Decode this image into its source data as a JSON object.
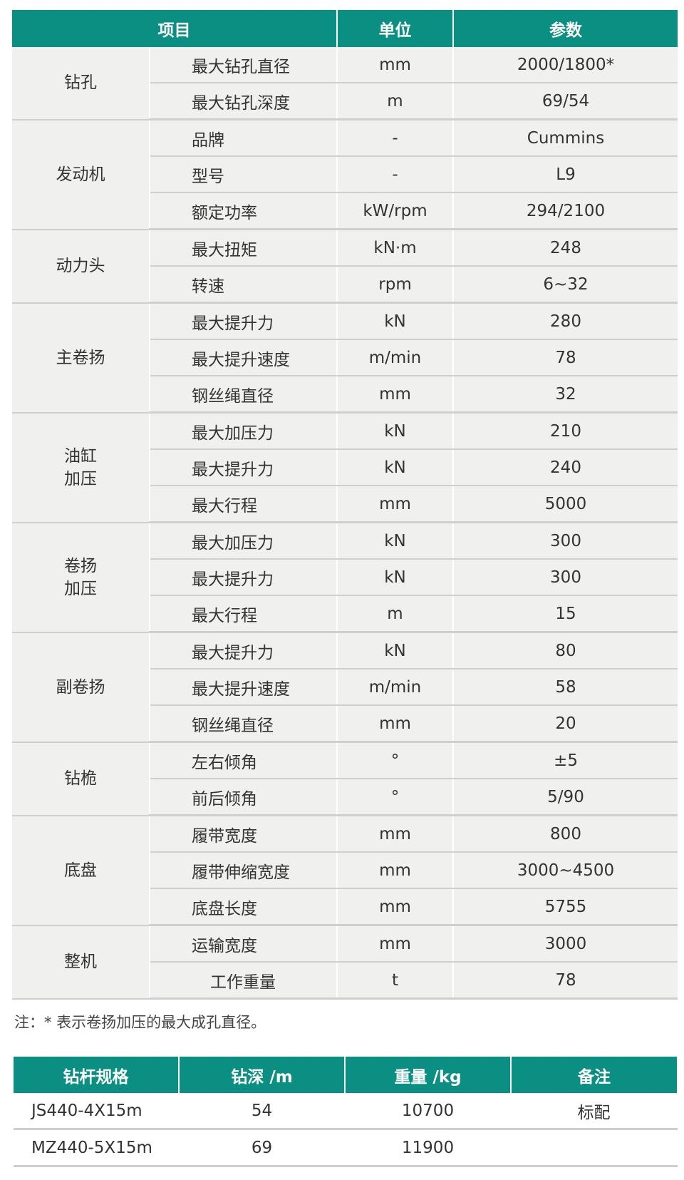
{
  "spec_table": {
    "headers": [
      "项目",
      "单位",
      "参数"
    ],
    "groups": [
      {
        "name": "钻孔",
        "rows": [
          [
            "最大钻孔直径",
            "mm",
            "2000/1800*"
          ],
          [
            "最大钻孔深度",
            "m",
            "69/54"
          ]
        ]
      },
      {
        "name": "发动机",
        "rows": [
          [
            "品牌",
            "-",
            "Cummins"
          ],
          [
            "型号",
            "-",
            "L9"
          ],
          [
            "额定功率",
            "kW/rpm",
            "294/2100"
          ]
        ]
      },
      {
        "name": "动力头",
        "rows": [
          [
            "最大扭矩",
            "kN·m",
            "248"
          ],
          [
            "转速",
            "rpm",
            "6~32"
          ]
        ]
      },
      {
        "name": "主卷扬",
        "rows": [
          [
            "最大提升力",
            "kN",
            "280"
          ],
          [
            "最大提升速度",
            "m/min",
            "78"
          ],
          [
            "钢丝绳直径",
            "mm",
            "32"
          ]
        ]
      },
      {
        "name": "油缸\n加压",
        "rows": [
          [
            "最大加压力",
            "kN",
            "210"
          ],
          [
            "最大提升力",
            "kN",
            "240"
          ],
          [
            "最大行程",
            "mm",
            "5000"
          ]
        ]
      },
      {
        "name": "卷扬\n加压",
        "rows": [
          [
            "最大加压力",
            "kN",
            "300"
          ],
          [
            "最大提升力",
            "kN",
            "300"
          ],
          [
            "最大行程",
            "m",
            "15"
          ]
        ]
      },
      {
        "name": "副卷扬",
        "rows": [
          [
            "最大提升力",
            "kN",
            "80"
          ],
          [
            "最大提升速度",
            "m/min",
            "58"
          ],
          [
            "钢丝绳直径",
            "mm",
            "20"
          ]
        ]
      },
      {
        "name": "钻桅",
        "rows": [
          [
            "左右倾角",
            "°",
            "±5"
          ],
          [
            "前后倾角",
            "°",
            "5/90"
          ]
        ]
      },
      {
        "name": "底盘",
        "rows": [
          [
            "履带宽度",
            "mm",
            "800"
          ],
          [
            "履带伸缩宽度",
            "mm",
            "3000~4500"
          ],
          [
            "底盘长度",
            "mm",
            "5755"
          ]
        ]
      },
      {
        "name": "整机",
        "rows": [
          [
            "运输宽度",
            "mm",
            "3000"
          ],
          [
            "工作重量",
            "t",
            "78"
          ]
        ]
      }
    ]
  },
  "note": "注：* 表示卷扬加压的最大成孔直径。",
  "rod_table": {
    "headers": [
      "钻杆规格",
      "钻深 /m",
      "重量 /kg",
      "备注"
    ],
    "rows": [
      [
        "JS440-4X15m",
        "54",
        "10700",
        "标配"
      ],
      [
        "MZ440-5X15m",
        "69",
        "11900",
        ""
      ]
    ]
  },
  "colors": {
    "header_bg": "#0a8f82",
    "cell_bg": "#f0f0ef",
    "rule": "#cfcfcf"
  }
}
